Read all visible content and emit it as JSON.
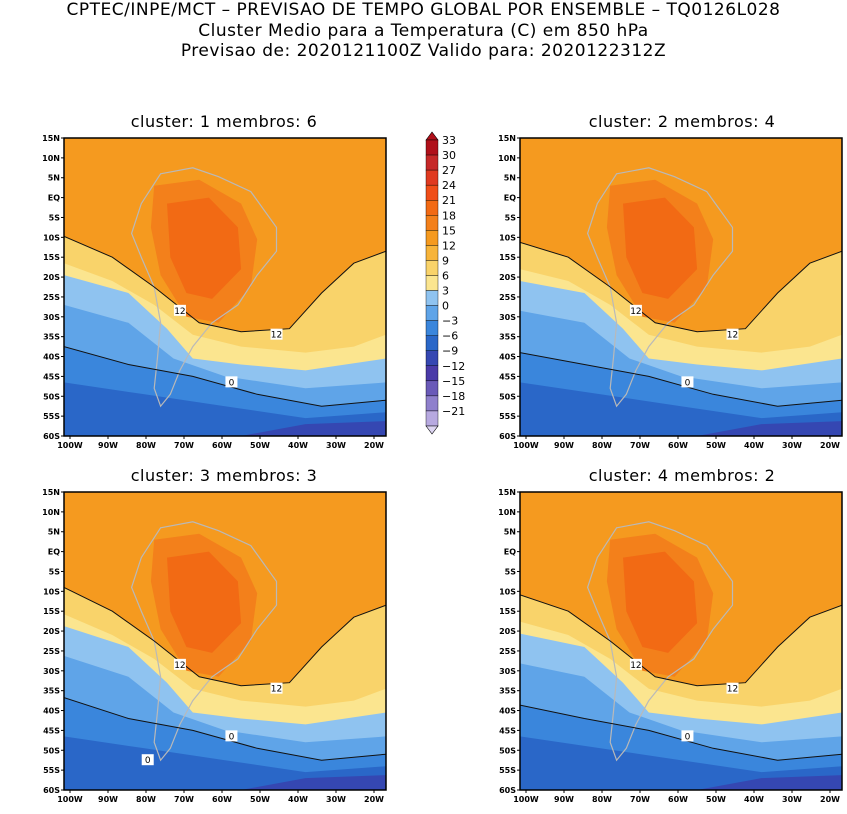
{
  "header": {
    "line1": "CPTEC/INPE/MCT – PREVISAO DE TEMPO GLOBAL POR ENSEMBLE – TQ0126L028",
    "line2": "Cluster Medio para a Temperatura (C) em 850 hPa",
    "line3": "Previsao de: 2020121100Z   Valido para: 2020122312Z"
  },
  "panels": [
    {
      "title": "cluster: 1   membros: 6",
      "contour_labels": [
        "12",
        "12",
        "0"
      ]
    },
    {
      "title": "cluster: 2   membros: 4",
      "contour_labels": [
        "12",
        "12",
        "0"
      ]
    },
    {
      "title": "cluster: 3   membros: 3",
      "contour_labels": [
        "12",
        "12",
        "0",
        "0"
      ]
    },
    {
      "title": "cluster: 4   membros: 2",
      "contour_labels": [
        "12",
        "12",
        "0"
      ]
    }
  ],
  "axes": {
    "lat_ticks": [
      "15N",
      "10N",
      "5N",
      "EQ",
      "5S",
      "10S",
      "15S",
      "20S",
      "25S",
      "30S",
      "35S",
      "40S",
      "45S",
      "50S",
      "55S",
      "60S"
    ],
    "lon_ticks": [
      "100W",
      "90W",
      "80W",
      "70W",
      "60W",
      "50W",
      "40W",
      "30W",
      "20W"
    ]
  },
  "colorbar": {
    "labels": [
      "33",
      "30",
      "27",
      "24",
      "21",
      "18",
      "15",
      "12",
      "9",
      "6",
      "3",
      "0",
      "−3",
      "−6",
      "−9",
      "−12",
      "−15",
      "−18",
      "−21"
    ],
    "colors": [
      "#b0101a",
      "#c62828",
      "#e03a20",
      "#f04e18",
      "#f26a14",
      "#f3801b",
      "#f59a1f",
      "#f7b43a",
      "#f9d36a",
      "#fbe58f",
      "#8fc3f0",
      "#5fa4e8",
      "#3a86dc",
      "#2a67c8",
      "#3547b2",
      "#4a3aa8",
      "#6a5ab8",
      "#8f80cc",
      "#b7a9e0"
    ]
  },
  "chart_data": {
    "type": "map-contour",
    "variable": "Temperatura (C) em 850 hPa",
    "units": "C",
    "levels": [
      -21,
      -18,
      -15,
      -12,
      -9,
      -6,
      -3,
      0,
      3,
      6,
      9,
      12,
      15,
      18,
      21,
      24,
      27,
      30,
      33
    ],
    "lon_range": [
      "100W",
      "15W"
    ],
    "lat_range": [
      "60S",
      "15N"
    ],
    "labeled_contours": [
      0,
      12
    ],
    "clusters": [
      {
        "cluster": 1,
        "membros": 6
      },
      {
        "cluster": 2,
        "membros": 4
      },
      {
        "cluster": 3,
        "membros": 3
      },
      {
        "cluster": 4,
        "membros": 2
      }
    ]
  }
}
